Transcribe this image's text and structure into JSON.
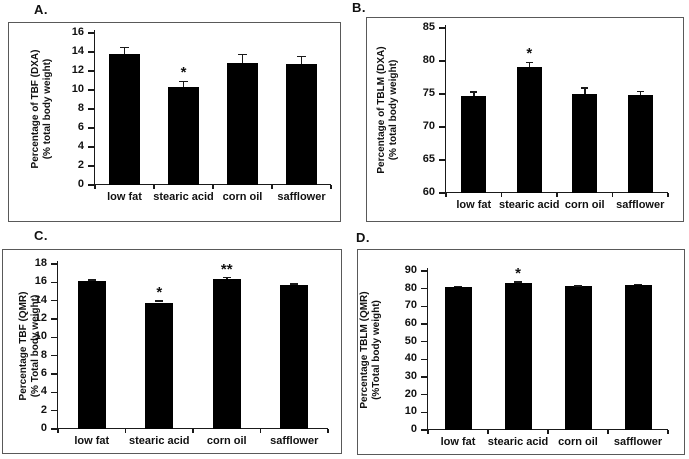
{
  "figure": {
    "background": "#ffffff",
    "bar_color": "#000000",
    "axis_color": "#1a1a1a",
    "border_color": "#595959",
    "text_color": "#111111"
  },
  "chart_data": [
    {
      "panel_label": "A.",
      "type": "bar",
      "ylabel_line1": "Percentage of TBF (DXA)",
      "ylabel_line2": "(% total body weight)",
      "categories": [
        "low fat",
        "stearic acid",
        "corn oil",
        "safflower"
      ],
      "values": [
        13.8,
        10.3,
        12.8,
        12.7
      ],
      "errors": [
        0.65,
        0.6,
        0.95,
        0.85
      ],
      "sig": [
        "",
        "*",
        "",
        ""
      ],
      "ylim": [
        0,
        16
      ],
      "ytick_step": 2,
      "grid": false,
      "bar_width_frac": 0.54
    },
    {
      "panel_label": "B.",
      "type": "bar",
      "ylabel_line1": "Percentage of TBLM (DXA)",
      "ylabel_line2": "(% total body weight)",
      "categories": [
        "low fat",
        "stearic acid",
        "corn oil",
        "safflower"
      ],
      "values": [
        74.7,
        79.1,
        75.0,
        74.9
      ],
      "errors": [
        0.6,
        0.7,
        0.9,
        0.5
      ],
      "sig": [
        "",
        "*",
        "",
        ""
      ],
      "ylim": [
        60,
        85
      ],
      "ytick_step": 5,
      "grid": false,
      "bar_width_frac": 0.45
    },
    {
      "panel_label": "C.",
      "type": "bar",
      "ylabel_line1": "Percentage TBF (QMR)",
      "ylabel_line2": "(% Total body weight)",
      "categories": [
        "low fat",
        "stearic acid",
        "corn oil",
        "safflower"
      ],
      "values": [
        16.2,
        13.8,
        16.4,
        15.7
      ],
      "errors": [
        0.07,
        0.15,
        0.12,
        0.1
      ],
      "sig": [
        "",
        "*",
        "**",
        ""
      ],
      "ylim": [
        0,
        18
      ],
      "ytick_step": 2,
      "grid": false,
      "bar_width_frac": 0.42
    },
    {
      "panel_label": "D.",
      "type": "bar",
      "ylabel_line1": "Percentage TBLM (QMR)",
      "ylabel_line2": "(%Total body weight)",
      "categories": [
        "low fat",
        "stearic acid",
        "corn oil",
        "safflower"
      ],
      "values": [
        81,
        83,
        81.3,
        82
      ],
      "errors": [
        0.3,
        0.8,
        0.3,
        0.3
      ],
      "sig": [
        "",
        "*",
        "",
        ""
      ],
      "ylim": [
        0,
        90
      ],
      "ytick_step": 10,
      "grid": false,
      "bar_width_frac": 0.45
    }
  ]
}
